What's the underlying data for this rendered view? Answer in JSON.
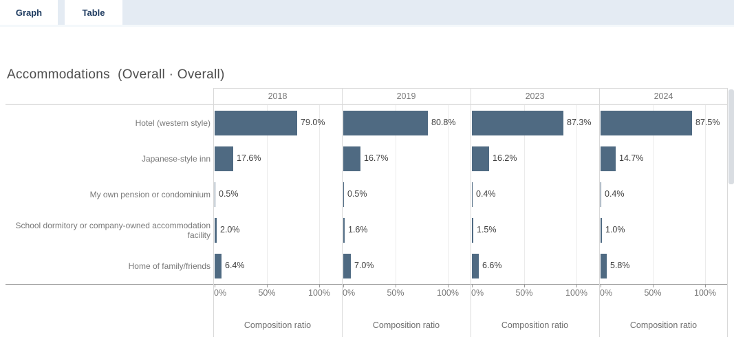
{
  "tabs": {
    "graph": "Graph",
    "table": "Table"
  },
  "title": "Accommodations  (Overall · Overall)",
  "chart_data": {
    "type": "bar",
    "orientation": "horizontal",
    "title": "Accommodations (Overall · Overall)",
    "categories": [
      "Hotel (western style)",
      "Japanese-style inn",
      "My own pension or condominium",
      "School dormitory or company-owned accommodation facility",
      "Home of family/friends"
    ],
    "series": [
      {
        "name": "2018",
        "values": [
          79.0,
          17.6,
          0.5,
          2.0,
          6.4
        ]
      },
      {
        "name": "2019",
        "values": [
          80.8,
          16.7,
          0.5,
          1.6,
          7.0
        ]
      },
      {
        "name": "2023",
        "values": [
          87.3,
          16.2,
          0.4,
          1.5,
          6.6
        ]
      },
      {
        "name": "2024",
        "values": [
          87.5,
          14.7,
          0.4,
          1.0,
          5.8
        ]
      }
    ],
    "x_ticks": [
      "0%",
      "50%",
      "100%"
    ],
    "xlim": [
      0,
      100
    ],
    "xlabel": "Composition ratio",
    "value_suffix": "%",
    "grid": true,
    "legend": false,
    "bar_color": "#4f6a82"
  },
  "colors": {
    "bar": "#4f6a82",
    "tab_text": "#1d3a5f",
    "tab_strip_bg": "#e4ebf3",
    "label_gray": "#787878"
  }
}
